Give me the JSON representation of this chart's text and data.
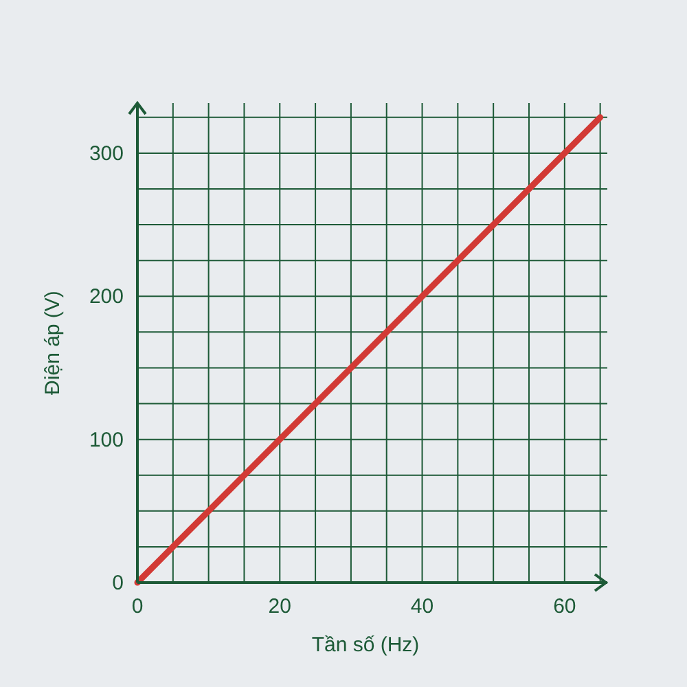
{
  "chart_data": {
    "type": "line",
    "xlabel": "Tần số (Hz)",
    "ylabel": "Điện áp (V)",
    "xlim": [
      0,
      66
    ],
    "ylim": [
      0,
      335
    ],
    "xticks": [
      0,
      {
        "value": 5,
        "label": null
      },
      {
        "value": 10,
        "label": null
      },
      {
        "value": 15,
        "label": null
      },
      20,
      {
        "value": 25,
        "label": null
      },
      {
        "value": 30,
        "label": null
      },
      {
        "value": 35,
        "label": null
      },
      40,
      {
        "value": 45,
        "label": null
      },
      {
        "value": 50,
        "label": null
      },
      {
        "value": 55,
        "label": null
      },
      60,
      {
        "value": 65,
        "label": null
      }
    ],
    "yticks": [
      0,
      {
        "value": 25,
        "label": null
      },
      {
        "value": 50,
        "label": null
      },
      {
        "value": 75,
        "label": null
      },
      100,
      {
        "value": 125,
        "label": null
      },
      {
        "value": 150,
        "label": null
      },
      {
        "value": 175,
        "label": null
      },
      200,
      {
        "value": 225,
        "label": null
      },
      {
        "value": 250,
        "label": null
      },
      {
        "value": 275,
        "label": null
      },
      300,
      {
        "value": 325,
        "label": null
      }
    ],
    "grid": true,
    "line_style": "solid",
    "series": [
      {
        "color": "#d23a35",
        "x": [
          0,
          65
        ],
        "values": [
          0,
          325
        ]
      }
    ]
  }
}
